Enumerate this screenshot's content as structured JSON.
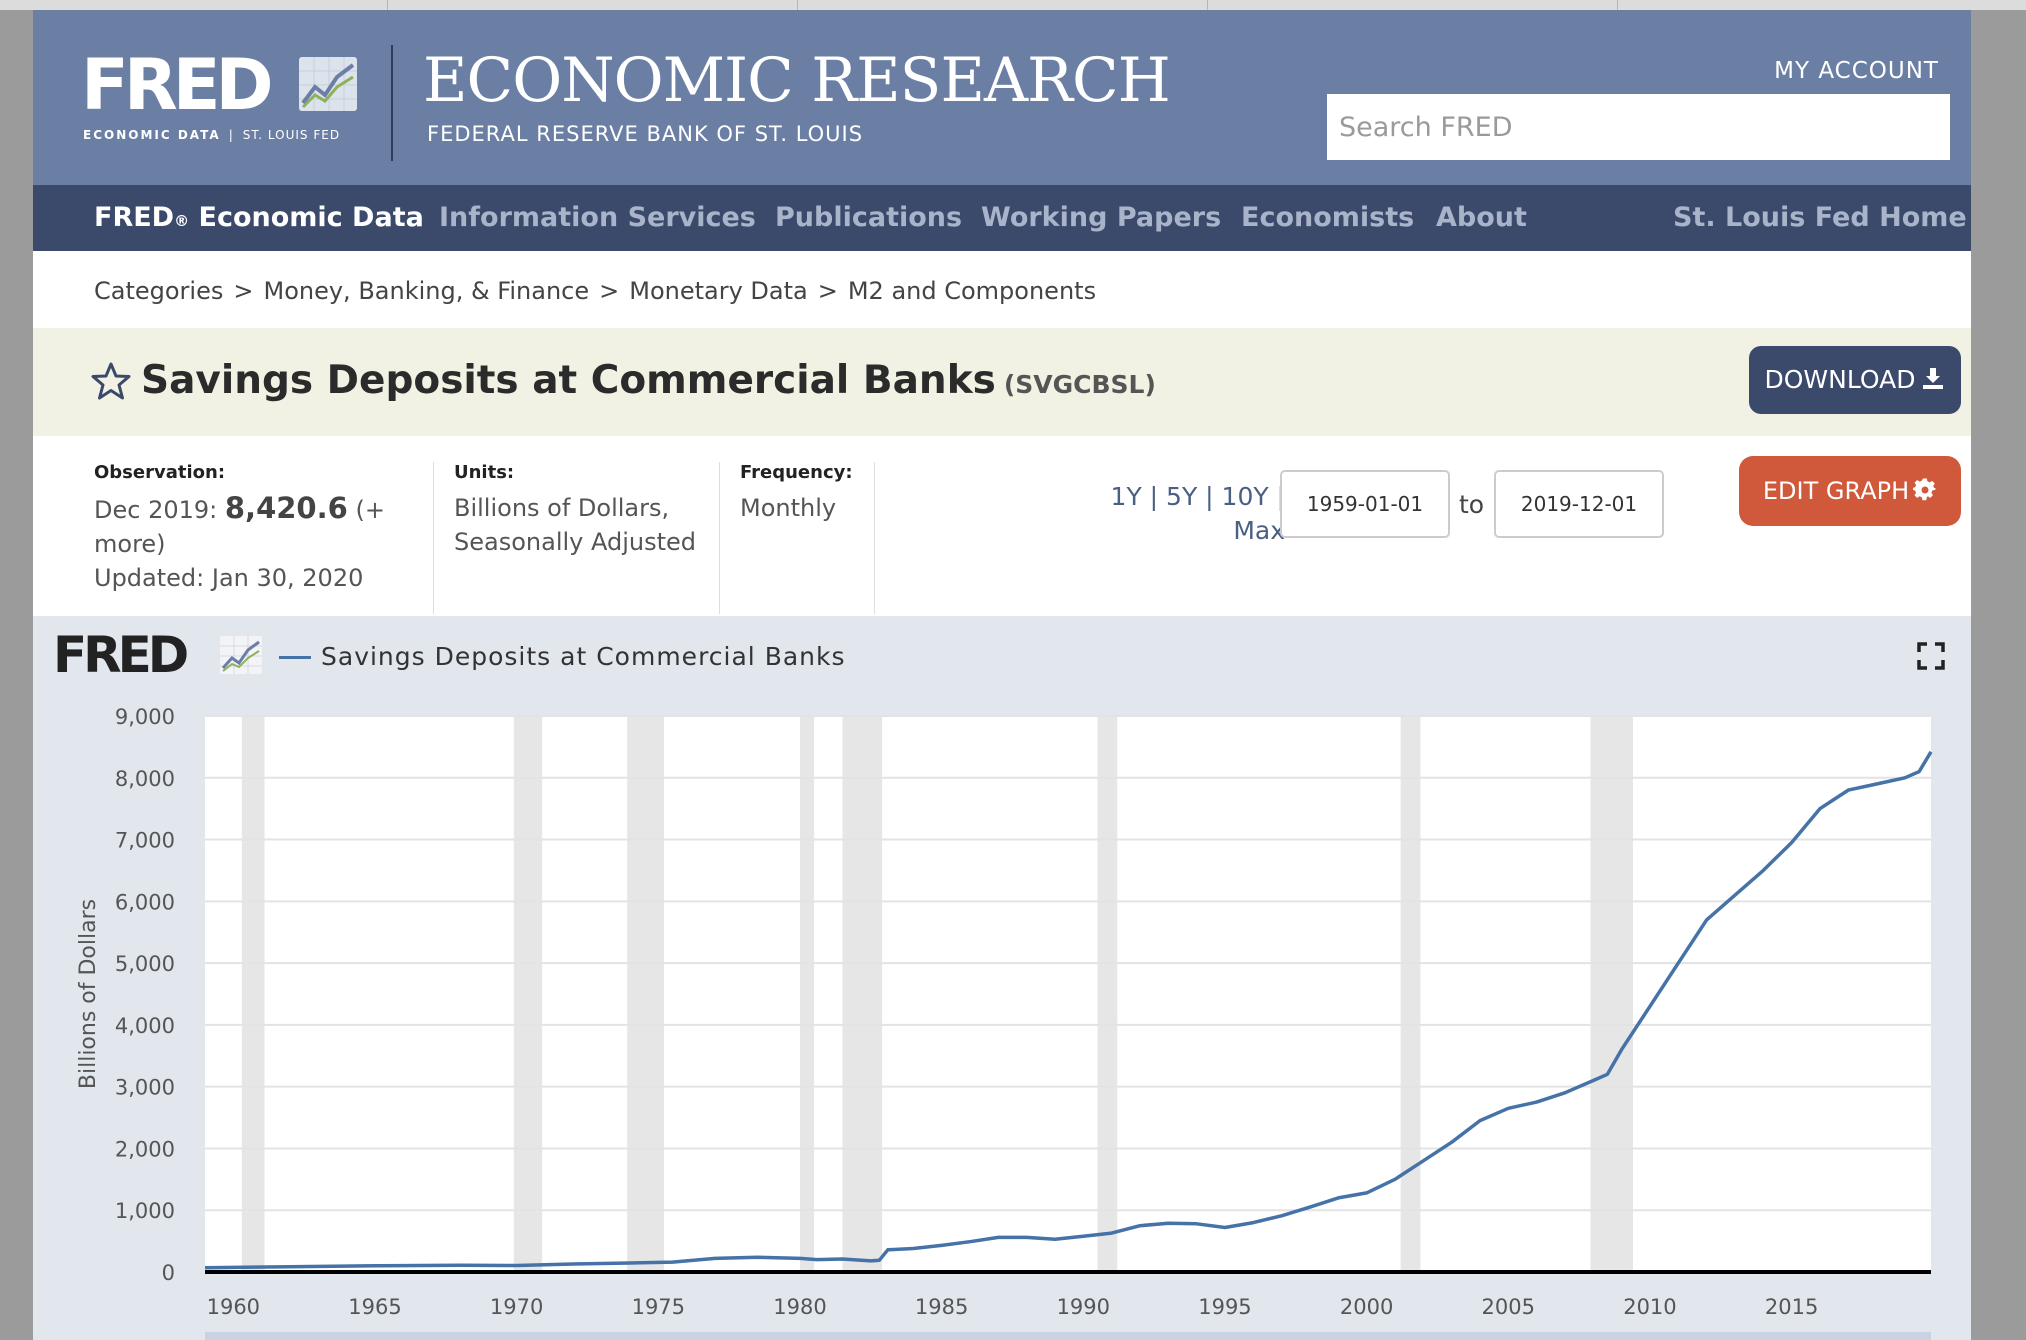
{
  "header": {
    "fred_logo": "FRED",
    "fred_sub_left": "ECONOMIC DATA",
    "fred_sub_right": "ST. LOUIS FED",
    "org_title": "ECONOMIC RESEARCH",
    "org_subtitle": "FEDERAL RESERVE BANK OF ST. LOUIS",
    "my_account": "MY ACCOUNT",
    "search_placeholder": "Search FRED"
  },
  "nav": {
    "brand": "FRED",
    "brand_reg": "®",
    "brand_rest": " Economic Data",
    "items": [
      "Information Services",
      "Publications",
      "Working Papers",
      "Economists",
      "About"
    ],
    "home": "St. Louis Fed Home"
  },
  "breadcrumb": [
    "Categories",
    "Money, Banking, & Finance",
    "Monetary Data",
    "M2 and Components"
  ],
  "breadcrumb_sep": ">",
  "series": {
    "title": "Savings Deposits at Commercial Banks",
    "id": "(SVGCBSL)",
    "download_label": "DOWNLOAD"
  },
  "meta": {
    "observation_label": "Observation:",
    "observation_date": "Dec 2019:",
    "observation_value": "8,420.6",
    "observation_more_1": "(+",
    "observation_more_2": "more)",
    "updated": "Updated: Jan 30, 2020",
    "units_label": "Units:",
    "units_line1": "Billions of Dollars,",
    "units_line2": "Seasonally Adjusted",
    "frequency_label": "Frequency:",
    "frequency_value": "Monthly",
    "range_line1": "1Y | 5Y | 10Y |",
    "range_line2": "Max",
    "start_date": "1959-01-01",
    "to_label": "to",
    "end_date": "2019-12-01",
    "edit_label": "EDIT GRAPH"
  },
  "graph": {
    "logo": "FRED",
    "legend": "Savings Deposits at Commercial Banks"
  },
  "colors": {
    "masthead": "#6b7fa5",
    "nav": "#3b4a6b",
    "title_bar": "#f1f2e4",
    "download": "#3b4a6b",
    "edit": "#d0583b",
    "graph_panel": "#e2e7ee",
    "series_line": "#4572a7",
    "recession": "#e6e6e6"
  },
  "chart_data": {
    "type": "line",
    "title": "",
    "xlabel": "",
    "ylabel": "Billions of Dollars",
    "xlim": [
      1959.0,
      2019.92
    ],
    "ylim": [
      0,
      9000
    ],
    "yticks": [
      0,
      1000,
      2000,
      3000,
      4000,
      5000,
      6000,
      7000,
      8000,
      9000
    ],
    "ytick_labels": [
      "0",
      "1,000",
      "2,000",
      "3,000",
      "4,000",
      "5,000",
      "6,000",
      "7,000",
      "8,000",
      "9,000"
    ],
    "xticks": [
      1960,
      1965,
      1970,
      1975,
      1980,
      1985,
      1990,
      1995,
      2000,
      2005,
      2010,
      2015
    ],
    "grid": true,
    "legend": "top-left",
    "recessions": [
      [
        1960.3,
        1961.1
      ],
      [
        1969.9,
        1970.9
      ],
      [
        1973.9,
        1975.2
      ],
      [
        1980.0,
        1980.5
      ],
      [
        1981.5,
        1982.9
      ],
      [
        1990.5,
        1991.2
      ],
      [
        2001.2,
        2001.9
      ],
      [
        2007.9,
        2009.4
      ]
    ],
    "series": [
      {
        "name": "Savings Deposits at Commercial Banks",
        "x": [
          1959.0,
          1962.0,
          1965.0,
          1968.0,
          1970.0,
          1972.0,
          1974.0,
          1975.5,
          1977.0,
          1978.5,
          1980.0,
          1980.6,
          1981.5,
          1982.5,
          1982.8,
          1983.1,
          1984.0,
          1985.0,
          1986.0,
          1987.0,
          1988.0,
          1989.0,
          1990.0,
          1991.0,
          1992.0,
          1993.0,
          1994.0,
          1995.0,
          1996.0,
          1997.0,
          1998.0,
          1999.0,
          2000.0,
          2001.0,
          2002.0,
          2003.0,
          2004.0,
          2005.0,
          2006.0,
          2007.0,
          2008.0,
          2008.5,
          2009.0,
          2010.0,
          2011.0,
          2012.0,
          2013.0,
          2014.0,
          2015.0,
          2016.0,
          2016.5,
          2017.0,
          2018.0,
          2019.0,
          2019.5,
          2019.92
        ],
        "y": [
          70,
          85,
          100,
          110,
          105,
          130,
          145,
          160,
          220,
          240,
          220,
          200,
          210,
          180,
          190,
          360,
          380,
          430,
          490,
          560,
          560,
          530,
          580,
          630,
          750,
          790,
          780,
          720,
          800,
          910,
          1050,
          1200,
          1280,
          1500,
          1800,
          2100,
          2450,
          2650,
          2750,
          2900,
          3100,
          3200,
          3600,
          4300,
          5000,
          5700,
          6100,
          6500,
          6950,
          7500,
          7650,
          7800,
          7900,
          8000,
          8100,
          8420.6
        ]
      }
    ]
  }
}
